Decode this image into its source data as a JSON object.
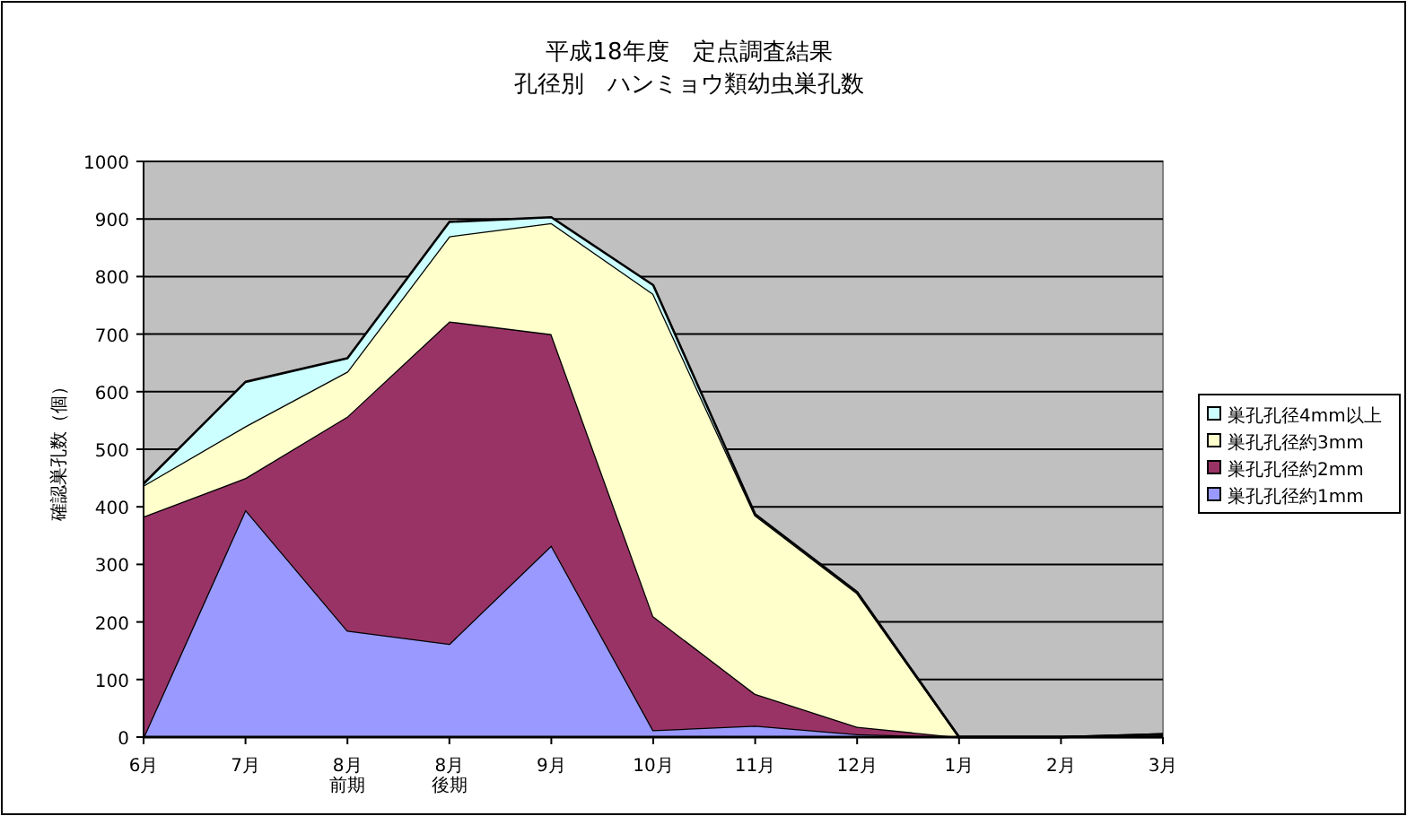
{
  "chart_data": {
    "type": "area",
    "stacked": true,
    "title": "平成18年度　定点調査結果",
    "subtitle": "孔径別　ハンミョウ類幼虫巣孔数",
    "ylabel": "確認巣孔数（個）",
    "categories": [
      "6月",
      "7月",
      "8月前期",
      "8月後期",
      "9月",
      "10月",
      "11月",
      "12月",
      "1月",
      "2月",
      "3月"
    ],
    "series": [
      {
        "name": "巣孔孔径約1mm",
        "color": "#9999ff",
        "values": [
          0,
          395,
          185,
          162,
          333,
          12,
          20,
          5,
          0,
          0,
          0
        ]
      },
      {
        "name": "巣孔孔径約2mm",
        "color": "#993366",
        "values": [
          383,
          55,
          372,
          560,
          367,
          198,
          55,
          13,
          0,
          0,
          3
        ]
      },
      {
        "name": "巣孔孔径約3mm",
        "color": "#ffffcc",
        "values": [
          54,
          90,
          78,
          148,
          193,
          560,
          310,
          232,
          0,
          0,
          2
        ]
      },
      {
        "name": "巣孔孔径4mm以上",
        "color": "#ccffff",
        "values": [
          3,
          77,
          23,
          25,
          10,
          15,
          2,
          2,
          0,
          0,
          0
        ]
      }
    ],
    "ylim": [
      0,
      1000
    ],
    "yticks": [
      0,
      100,
      200,
      300,
      400,
      500,
      600,
      700,
      800,
      900,
      1000
    ],
    "grid": "y",
    "legend": "right"
  }
}
